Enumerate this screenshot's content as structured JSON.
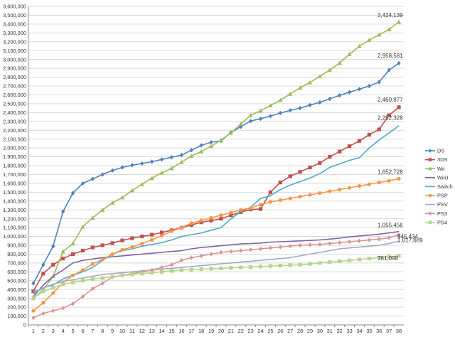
{
  "chart_data": {
    "type": "line",
    "x": [
      1,
      2,
      3,
      4,
      5,
      6,
      7,
      8,
      9,
      10,
      11,
      12,
      13,
      14,
      15,
      16,
      17,
      18,
      19,
      20,
      21,
      22,
      23,
      24,
      25,
      26,
      27,
      28,
      29,
      30,
      31,
      32,
      33,
      34,
      35,
      36,
      37,
      38
    ],
    "ylim": [
      0,
      3600000
    ],
    "y_ticks": [
      "0",
      "100,000",
      "200,000",
      "300,000",
      "400,000",
      "500,000",
      "600,000",
      "700,000",
      "800,000",
      "900,000",
      "1,000,000",
      "1,100,000",
      "1,200,000",
      "1,300,000",
      "1,400,000",
      "1,500,000",
      "1,600,000",
      "1,700,000",
      "1,800,000",
      "1,900,000",
      "2,000,000",
      "2,100,000",
      "2,200,000",
      "2,300,000",
      "2,400,000",
      "2,500,000",
      "2,600,000",
      "2,700,000",
      "2,800,000",
      "2,900,000",
      "3,000,000",
      "3,100,000",
      "3,200,000",
      "3,300,000",
      "3,400,000",
      "3,500,000",
      "3,600,000"
    ],
    "x_ticks": [
      "1",
      "2",
      "3",
      "4",
      "5",
      "6",
      "7",
      "8",
      "9",
      "10",
      "11",
      "12",
      "13",
      "14",
      "15",
      "16",
      "17",
      "18",
      "19",
      "20",
      "21",
      "22",
      "23",
      "24",
      "25",
      "26",
      "27",
      "28",
      "29",
      "30",
      "31",
      "32",
      "33",
      "34",
      "35",
      "36",
      "37",
      "38"
    ],
    "grid": true,
    "legend_position": "right",
    "series": [
      {
        "name": "DS",
        "color": "#4f81bd",
        "marker": "diamond",
        "values": [
          470000,
          680000,
          890000,
          1280000,
          1490000,
          1600000,
          1650000,
          1700000,
          1745000,
          1780000,
          1805000,
          1825000,
          1845000,
          1870000,
          1895000,
          1920000,
          1975000,
          2030000,
          2065000,
          2080000,
          2175000,
          2240000,
          2305000,
          2330000,
          2360000,
          2395000,
          2425000,
          2450000,
          2485000,
          2515000,
          2555000,
          2595000,
          2630000,
          2665000,
          2700000,
          2745000,
          2880000,
          2958581
        ],
        "end_label": "2,958,581"
      },
      {
        "name": "3DS",
        "color": "#c0504d",
        "marker": "square",
        "values": [
          380000,
          580000,
          680000,
          750000,
          800000,
          840000,
          875000,
          900000,
          925000,
          955000,
          980000,
          1000000,
          1020000,
          1045000,
          1070000,
          1100000,
          1130000,
          1160000,
          1180000,
          1200000,
          1240000,
          1275000,
          1305000,
          1310000,
          1500000,
          1610000,
          1680000,
          1730000,
          1780000,
          1830000,
          1900000,
          1960000,
          2020000,
          2080000,
          2150000,
          2210000,
          2370000,
          2460877
        ],
        "end_label": "2,460,877"
      },
      {
        "name": "Wii",
        "color": "#9bbb59",
        "marker": "triangle",
        "values": [
          300000,
          400000,
          550000,
          830000,
          920000,
          1110000,
          1210000,
          1300000,
          1380000,
          1440000,
          1520000,
          1590000,
          1660000,
          1720000,
          1770000,
          1840000,
          1910000,
          1960000,
          2020000,
          2090000,
          2170000,
          2270000,
          2370000,
          2420000,
          2480000,
          2540000,
          2610000,
          2680000,
          2740000,
          2810000,
          2880000,
          2960000,
          3060000,
          3150000,
          3220000,
          3280000,
          3340000,
          3424139
        ],
        "end_label": "3,424,139"
      },
      {
        "name": "WiiU",
        "color": "#8064a2",
        "marker": "none",
        "values": [
          320000,
          450000,
          550000,
          620000,
          700000,
          730000,
          745000,
          760000,
          770000,
          780000,
          790000,
          800000,
          810000,
          820000,
          830000,
          840000,
          860000,
          875000,
          885000,
          895000,
          905000,
          915000,
          920000,
          925000,
          935000,
          940000,
          945000,
          950000,
          955000,
          960000,
          970000,
          980000,
          995000,
          1005000,
          1015000,
          1025000,
          1040000,
          1055456
        ],
        "end_label": "1,055,456"
      },
      {
        "name": "Switch",
        "color": "#4bacc6",
        "marker": "none",
        "values": [
          350000,
          420000,
          450000,
          520000,
          560000,
          600000,
          650000,
          730000,
          800000,
          840000,
          860000,
          890000,
          910000,
          930000,
          960000,
          1000000,
          1020000,
          1040000,
          1070000,
          1100000,
          1200000,
          1280000,
          1330000,
          1430000,
          1460000,
          1530000,
          1580000,
          1620000,
          1660000,
          1710000,
          1780000,
          1820000,
          1860000,
          1890000,
          2000000,
          2090000,
          2170000,
          2252328
        ],
        "end_label": "2,252,328"
      },
      {
        "name": "PSP",
        "color": "#f79646",
        "marker": "circle",
        "values": [
          160000,
          250000,
          360000,
          480000,
          560000,
          620000,
          690000,
          740000,
          800000,
          850000,
          880000,
          920000,
          960000,
          1010000,
          1060000,
          1100000,
          1150000,
          1180000,
          1210000,
          1240000,
          1270000,
          1300000,
          1320000,
          1360000,
          1390000,
          1410000,
          1430000,
          1450000,
          1470000,
          1490000,
          1510000,
          1530000,
          1550000,
          1570000,
          1590000,
          1610000,
          1630000,
          1652728
        ],
        "end_label": "1,652,728"
      },
      {
        "name": "PSV",
        "color": "#a6a6c8",
        "marker": "none",
        "values": [
          370000,
          420000,
          460000,
          490000,
          510000,
          530000,
          550000,
          570000,
          580000,
          590000,
          600000,
          610000,
          620000,
          630000,
          640000,
          650000,
          660000,
          670000,
          680000,
          690000,
          700000,
          710000,
          720000,
          730000,
          740000,
          750000,
          760000,
          780000,
          800000,
          820000,
          840000,
          860000,
          870000,
          880000,
          890000,
          900000,
          920000,
          945434
        ],
        "end_label": "945,434"
      },
      {
        "name": "PS3",
        "color": "#d99694",
        "marker": "diamond",
        "values": [
          80000,
          130000,
          160000,
          190000,
          240000,
          320000,
          410000,
          470000,
          540000,
          560000,
          580000,
          600000,
          620000,
          650000,
          680000,
          730000,
          760000,
          780000,
          800000,
          820000,
          830000,
          840000,
          850000,
          860000,
          870000,
          880000,
          890000,
          900000,
          905000,
          910000,
          920000,
          930000,
          940000,
          950000,
          960000,
          970000,
          985000,
          1017689
        ],
        "end_label": "1,017,689"
      },
      {
        "name": "PS4",
        "color": "#b8d589",
        "marker": "square",
        "values": [
          300000,
          380000,
          420000,
          460000,
          480000,
          500000,
          520000,
          530000,
          545000,
          560000,
          570000,
          580000,
          590000,
          600000,
          610000,
          620000,
          625000,
          630000,
          635000,
          640000,
          645000,
          650000,
          655000,
          660000,
          665000,
          670000,
          675000,
          680000,
          690000,
          700000,
          710000,
          720000,
          730000,
          740000,
          750000,
          760000,
          770000,
          781098
        ],
        "end_label": "781,098"
      }
    ]
  }
}
